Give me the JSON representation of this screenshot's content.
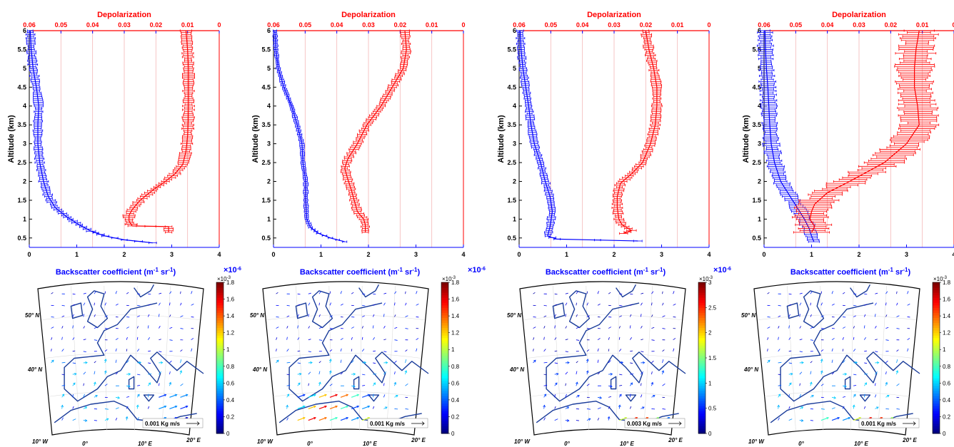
{
  "chart_data": [
    {
      "type": "line",
      "top_axis_title": "Depolarization",
      "xlabel": "Backscatter coefficient (m",
      "xlabel_sup1": "-1",
      "xlabel_mid": " sr",
      "xlabel_sup2": "-1",
      "xlabel_end": ")",
      "x_multiplier": "×10",
      "x_multiplier_exp": "-6",
      "ylabel": "Altitude (km)",
      "xlim": [
        0,
        4
      ],
      "depol_lim": [
        0.06,
        0
      ],
      "ylim": [
        0.25,
        6
      ],
      "x_ticks": [
        "0",
        "1",
        "2",
        "3",
        "4"
      ],
      "depol_ticks": [
        "0.06",
        "0.05",
        "0.04",
        "0.03",
        "0.02",
        "0.01",
        "0"
      ],
      "y_ticks": [
        "0.5",
        "1",
        "1.5",
        "2",
        "2.5",
        "3",
        "3.5",
        "4",
        "4.5",
        "5",
        "5.5",
        "6"
      ],
      "series": [
        {
          "color": "#0000ff",
          "axis": "backscatter",
          "points": [
            [
              2.6,
              0.37
            ],
            [
              2.0,
              0.45
            ],
            [
              1.6,
              0.55
            ],
            [
              1.3,
              0.68
            ],
            [
              1.05,
              0.85
            ],
            [
              0.8,
              1.05
            ],
            [
              0.55,
              1.3
            ],
            [
              0.4,
              1.6
            ],
            [
              0.3,
              2.0
            ],
            [
              0.22,
              2.5
            ],
            [
              0.18,
              3.0
            ],
            [
              0.18,
              3.5
            ],
            [
              0.2,
              4.0
            ],
            [
              0.15,
              4.5
            ],
            [
              0.08,
              5.0
            ],
            [
              0.04,
              5.5
            ],
            [
              0.02,
              6.0
            ]
          ],
          "err": 0.08
        },
        {
          "color": "#ff0000",
          "axis": "depolarization",
          "points": [
            [
              0.016,
              0.65
            ],
            [
              0.016,
              0.8
            ],
            [
              0.0275,
              0.82
            ],
            [
              0.0285,
              0.95
            ],
            [
              0.0285,
              1.1
            ],
            [
              0.0275,
              1.25
            ],
            [
              0.025,
              1.5
            ],
            [
              0.0205,
              1.8
            ],
            [
              0.017,
              2.0
            ],
            [
              0.014,
              2.2
            ],
            [
              0.0115,
              2.45
            ],
            [
              0.0105,
              2.8
            ],
            [
              0.01,
              3.2
            ],
            [
              0.0098,
              3.6
            ],
            [
              0.0097,
              4.0
            ],
            [
              0.0097,
              4.5
            ],
            [
              0.0097,
              5.0
            ],
            [
              0.01,
              5.5
            ],
            [
              0.0105,
              6.0
            ]
          ],
          "err": 0.0015
        }
      ]
    },
    {
      "type": "line",
      "top_axis_title": "Depolarization",
      "xlabel": "Backscatter coefficient (m",
      "xlabel_sup1": "-1",
      "xlabel_mid": " sr",
      "xlabel_sup2": "-1",
      "xlabel_end": ")",
      "x_multiplier": "×10",
      "x_multiplier_exp": "-6",
      "ylabel": "Altitude (km)",
      "xlim": [
        0,
        4
      ],
      "depol_lim": [
        0.06,
        0
      ],
      "ylim": [
        0.25,
        6
      ],
      "x_ticks": [
        "0",
        "1",
        "2",
        "3",
        "4"
      ],
      "depol_ticks": [
        "0.06",
        "0.05",
        "0.04",
        "0.03",
        "0.02",
        "0.01",
        "0"
      ],
      "y_ticks": [
        "0.5",
        "1",
        "1.5",
        "2",
        "2.5",
        "3",
        "3.5",
        "4",
        "4.5",
        "5",
        "5.5",
        "6"
      ],
      "series": [
        {
          "color": "#0000ff",
          "axis": "backscatter",
          "points": [
            [
              1.5,
              0.4
            ],
            [
              1.2,
              0.5
            ],
            [
              0.95,
              0.62
            ],
            [
              0.78,
              0.78
            ],
            [
              0.7,
              1.0
            ],
            [
              0.68,
              1.5
            ],
            [
              0.68,
              2.0
            ],
            [
              0.62,
              2.5
            ],
            [
              0.6,
              3.0
            ],
            [
              0.5,
              3.5
            ],
            [
              0.38,
              4.0
            ],
            [
              0.22,
              4.5
            ],
            [
              0.1,
              5.0
            ],
            [
              0.05,
              5.5
            ],
            [
              0.03,
              6.0
            ]
          ],
          "err": 0.04
        },
        {
          "color": "#ff0000",
          "axis": "depolarization",
          "points": [
            [
              0.031,
              0.65
            ],
            [
              0.031,
              0.85
            ],
            [
              0.0315,
              1.0
            ],
            [
              0.0335,
              1.2
            ],
            [
              0.0345,
              1.5
            ],
            [
              0.0355,
              1.8
            ],
            [
              0.0365,
              2.05
            ],
            [
              0.0375,
              2.35
            ],
            [
              0.0365,
              2.6
            ],
            [
              0.0335,
              3.0
            ],
            [
              0.0305,
              3.5
            ],
            [
              0.026,
              4.0
            ],
            [
              0.0225,
              4.5
            ],
            [
              0.019,
              5.0
            ],
            [
              0.018,
              5.5
            ],
            [
              0.0185,
              6.0
            ]
          ],
          "err": 0.0012
        }
      ]
    },
    {
      "type": "line",
      "top_axis_title": "Depolarization",
      "xlabel": "Backscatter coefficient (m",
      "xlabel_sup1": "-1",
      "xlabel_mid": " sr",
      "xlabel_sup2": "-1",
      "xlabel_end": ")",
      "x_multiplier": "×10",
      "x_multiplier_exp": "-6",
      "ylabel": "Altitude (km)",
      "xlim": [
        0,
        4
      ],
      "depol_lim": [
        0.06,
        0
      ],
      "ylim": [
        0.25,
        6
      ],
      "x_ticks": [
        "0",
        "1",
        "2",
        "3",
        "4"
      ],
      "depol_ticks": [
        "0.06",
        "0.05",
        "0.04",
        "0.03",
        "0.02",
        "0.01",
        "0"
      ],
      "y_ticks": [
        "0.5",
        "1",
        "1.5",
        "2",
        "2.5",
        "3",
        "3.5",
        "4",
        "4.5",
        "5",
        "5.5",
        "6"
      ],
      "series": [
        {
          "color": "#0000ff",
          "axis": "backscatter",
          "points": [
            [
              2.5,
              0.42
            ],
            [
              0.8,
              0.47
            ],
            [
              0.6,
              0.55
            ],
            [
              0.65,
              0.8
            ],
            [
              0.7,
              1.2
            ],
            [
              0.65,
              1.6
            ],
            [
              0.55,
              2.0
            ],
            [
              0.45,
              2.5
            ],
            [
              0.32,
              3.0
            ],
            [
              0.25,
              3.5
            ],
            [
              0.2,
              4.0
            ],
            [
              0.14,
              4.5
            ],
            [
              0.08,
              5.0
            ],
            [
              0.04,
              5.5
            ],
            [
              0.02,
              6.0
            ]
          ],
          "err": 0.07
        },
        {
          "color": "#ff0000",
          "axis": "depolarization",
          "points": [
            [
              0.027,
              0.62
            ],
            [
              0.0245,
              0.7
            ],
            [
              0.0275,
              0.85
            ],
            [
              0.0285,
              1.0
            ],
            [
              0.029,
              1.3
            ],
            [
              0.029,
              1.6
            ],
            [
              0.028,
              1.95
            ],
            [
              0.0245,
              2.2
            ],
            [
              0.021,
              2.5
            ],
            [
              0.0185,
              3.0
            ],
            [
              0.017,
              3.5
            ],
            [
              0.0165,
              4.0
            ],
            [
              0.0165,
              4.5
            ],
            [
              0.0175,
              5.0
            ],
            [
              0.019,
              5.5
            ],
            [
              0.02,
              6.0
            ]
          ],
          "err": 0.0013
        }
      ]
    },
    {
      "type": "line",
      "top_axis_title": "Depolarization",
      "xlabel": "Backscatter coefficient (m",
      "xlabel_sup1": "-1",
      "xlabel_mid": " sr",
      "xlabel_sup2": "-1",
      "xlabel_end": ")",
      "x_multiplier": "×10",
      "x_multiplier_exp": "-6",
      "ylabel": "Altitude (km)",
      "xlim": [
        0,
        4
      ],
      "depol_lim": [
        0.06,
        0
      ],
      "ylim": [
        0.25,
        6
      ],
      "x_ticks": [
        "0",
        "1",
        "2",
        "3",
        "4"
      ],
      "depol_ticks": [
        "0.06",
        "0.05",
        "0.04",
        "0.03",
        "0.02",
        "0.01",
        "0"
      ],
      "y_ticks": [
        "0.5",
        "1",
        "1.5",
        "2",
        "2.5",
        "3",
        "3.5",
        "4",
        "4.5",
        "5",
        "5.5",
        "6"
      ],
      "series": [
        {
          "color": "#0000ff",
          "axis": "backscatter",
          "points": [
            [
              1.05,
              0.4
            ],
            [
              1.0,
              0.55
            ],
            [
              0.95,
              0.75
            ],
            [
              0.85,
              1.0
            ],
            [
              0.7,
              1.3
            ],
            [
              0.5,
              1.7
            ],
            [
              0.35,
              2.0
            ],
            [
              0.22,
              2.5
            ],
            [
              0.15,
              3.0
            ],
            [
              0.12,
              3.5
            ],
            [
              0.1,
              4.0
            ],
            [
              0.08,
              4.5
            ],
            [
              0.05,
              5.0
            ],
            [
              0.03,
              5.5
            ],
            [
              0.02,
              6.0
            ]
          ],
          "err": 0.14
        },
        {
          "color": "#ff0000",
          "axis": "depolarization",
          "points": [
            [
              0.045,
              0.65
            ],
            [
              0.044,
              0.8
            ],
            [
              0.0455,
              1.0
            ],
            [
              0.045,
              1.2
            ],
            [
              0.044,
              1.4
            ],
            [
              0.04,
              1.7
            ],
            [
              0.033,
              2.0
            ],
            [
              0.022,
              2.5
            ],
            [
              0.015,
              3.0
            ],
            [
              0.011,
              3.5
            ],
            [
              0.0115,
              4.0
            ],
            [
              0.0125,
              4.5
            ],
            [
              0.0125,
              5.0
            ],
            [
              0.012,
              5.5
            ],
            [
              0.011,
              6.0
            ]
          ],
          "err": 0.005
        }
      ]
    },
    {
      "type": "heatmap",
      "ref_label": "0.001 Kg m/s",
      "lat_labels": [
        "50° N",
        "40° N"
      ],
      "lon_labels": [
        "10° W",
        "0°",
        "10° E",
        "20° E"
      ],
      "colorbar": {
        "multiplier": "×10",
        "exp": "-3",
        "ticks": [
          "0",
          "0.2",
          "0.4",
          "0.6",
          "0.8",
          "1",
          "1.2",
          "1.4",
          "1.6",
          "1.8"
        ],
        "max": 1.8
      },
      "flux_zone": [
        [
          0.7,
          0.9
        ],
        [
          0.72,
          0.98
        ]
      ],
      "flux_max": 0.5
    },
    {
      "type": "heatmap",
      "ref_label": "0.001 Kg m/s",
      "lat_labels": [
        "50° N",
        "40° N"
      ],
      "lon_labels": [
        "10° W",
        "0°",
        "10° E",
        "20° E"
      ],
      "colorbar": {
        "multiplier": "×10",
        "exp": "-3",
        "ticks": [
          "0",
          "0.2",
          "0.4",
          "0.6",
          "0.8",
          "1",
          "1.2",
          "1.4",
          "1.6",
          "1.8"
        ],
        "max": 1.8
      },
      "flux_zone": [
        [
          0.15,
          0.6
        ],
        [
          0.72,
          0.98
        ]
      ],
      "flux_max": 1.6
    },
    {
      "type": "heatmap",
      "ref_label": "0.003 Kg m/s",
      "lat_labels": [
        "50° N",
        "40° N"
      ],
      "lon_labels": [
        "10° W",
        "0°",
        "10° E",
        "20° E"
      ],
      "colorbar": {
        "multiplier": "×10",
        "exp": "-3",
        "ticks": [
          "0",
          "0.5",
          "1",
          "1.5",
          "2",
          "2.5",
          "3"
        ],
        "max": 3
      },
      "flux_zone": [
        [
          0.55,
          0.9
        ],
        [
          0.85,
          0.98
        ]
      ],
      "flux_max": 2.6
    },
    {
      "type": "heatmap",
      "ref_label": "0.001 Kg m/s",
      "lat_labels": [
        "50° N",
        "40° N"
      ],
      "lon_labels": [
        "10° W",
        "0°",
        "10° E",
        "20° E"
      ],
      "colorbar": {
        "multiplier": "×10",
        "exp": "-3",
        "ticks": [
          "0",
          "0.2",
          "0.4",
          "0.6",
          "0.8",
          "1",
          "1.2",
          "1.4",
          "1.6",
          "1.8"
        ],
        "max": 1.8
      },
      "flux_zone": [
        [
          0.35,
          0.85
        ],
        [
          0.85,
          0.98
        ]
      ],
      "flux_max": 1.6
    }
  ]
}
